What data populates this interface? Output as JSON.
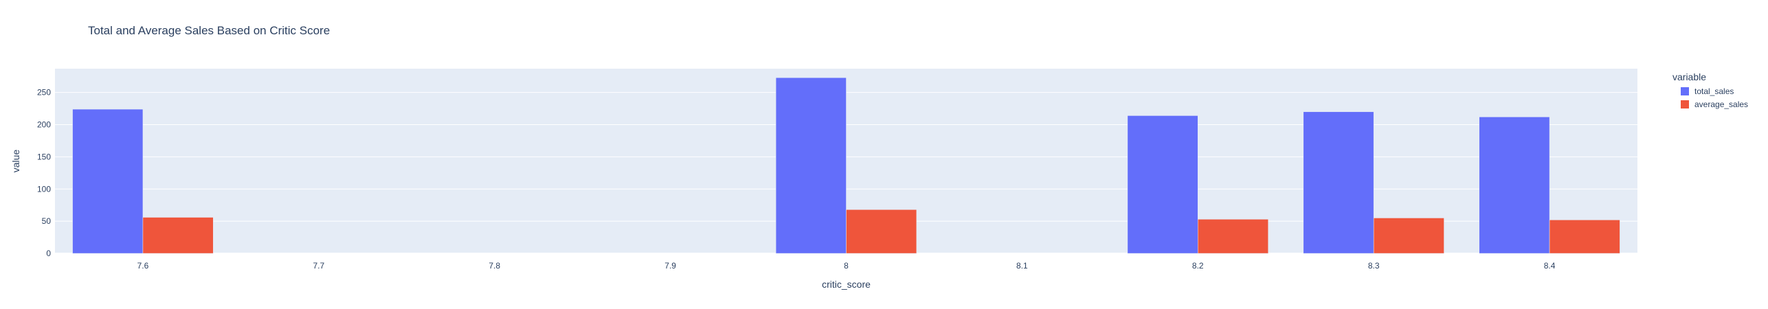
{
  "chart_data": {
    "type": "bar",
    "title": "Total and Average Sales Based on Critic Score",
    "xlabel": "critic_score",
    "ylabel": "value",
    "x_ticks": [
      "7.6",
      "7.7",
      "7.8",
      "7.9",
      "8",
      "8.1",
      "8.2",
      "8.3",
      "8.4"
    ],
    "x_range": [
      7.55,
      8.45
    ],
    "ylim": [
      0,
      287
    ],
    "y_ticks": [
      0,
      50,
      100,
      150,
      200,
      250
    ],
    "grid": true,
    "barmode": "group",
    "legend": {
      "title": "variable",
      "placement": "top-right"
    },
    "categories": [
      7.6,
      8.0,
      8.2,
      8.3,
      8.4
    ],
    "series": [
      {
        "name": "total_sales",
        "color": "#636efa",
        "values": [
          224,
          273,
          214,
          220,
          212
        ]
      },
      {
        "name": "average_sales",
        "color": "#ef553b",
        "values": [
          56,
          68,
          53,
          55,
          52
        ]
      }
    ],
    "colors": {
      "plot_bg": "#e5ecf6",
      "grid": "#ffffff",
      "text": "#2a3f5f"
    }
  }
}
